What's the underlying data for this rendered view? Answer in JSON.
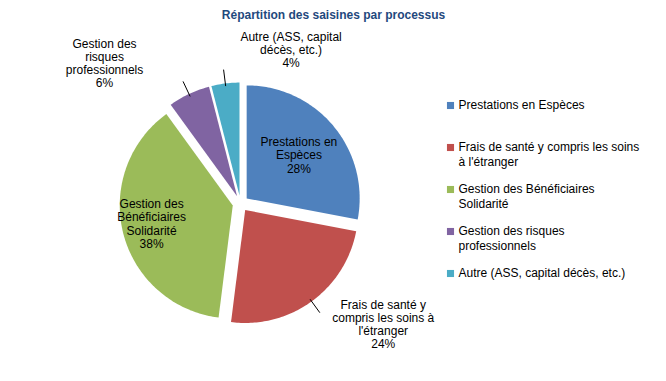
{
  "chart_data": {
    "type": "pie",
    "title": "Répartition des saisines par processus",
    "categories": [
      "Prestations en Espèces",
      "Frais de santé y compris les soins à l'étranger",
      "Gestion des Bénéficiaires Solidarité",
      "Gestion des risques professionnels",
      "Autre (ASS, capital décès, etc.)"
    ],
    "values": [
      28,
      24,
      38,
      6,
      4
    ],
    "value_labels": [
      "28%",
      "24%",
      "38%",
      "6%",
      "4%"
    ],
    "colors": [
      "#4F81BD",
      "#C0504D",
      "#9BBB59",
      "#8064A2",
      "#4BACC6"
    ],
    "data_labels": true,
    "legend": "right"
  }
}
